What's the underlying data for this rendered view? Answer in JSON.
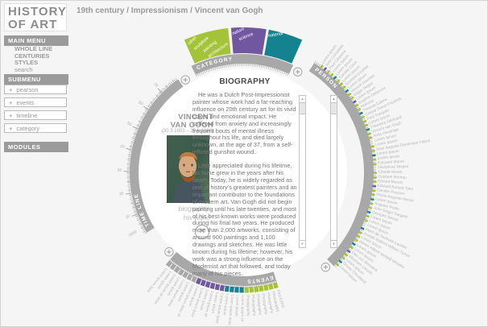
{
  "header": {
    "logo_line1": "HISTORY",
    "logo_line2": "OF ART",
    "breadcrumb": "19th century / Impressionism / Vincent van Gogh"
  },
  "sidebar": {
    "main_menu_label": "MAIN MENU",
    "main_menu_items": [
      "WHOLE LINE",
      "CENTURIES",
      "STYLES",
      "search"
    ],
    "submenu_label": "SUBMENU",
    "submenu_items": [
      "pearson",
      "events",
      "timeline",
      "category"
    ],
    "modules_label": "MODULES"
  },
  "colors": {
    "green": "#a5c339",
    "purple": "#7157a0",
    "teal": "#15838f",
    "gray": "#a8a8a8",
    "band": "#a8a8a8",
    "tick": "#b5b5b5",
    "label": "#b5b5b5"
  },
  "artist": {
    "name_line1": "VINCENT",
    "name_line2": "VAN GOGH",
    "dates": "(30.3.1853 – 29.8.1890)",
    "links": [
      "biography",
      "his work"
    ],
    "close_glyph": "✕"
  },
  "biography": {
    "title": "BIOGRAPHY",
    "paragraphs": [
      "He was a Dutch Post-Impressionist painter whose work had a far-reaching influence on 20th century art for its vivid colors and emotional impact. He suffered from anxiety and increasingly frequent bouts of mental illness throughout his life, and died largely unknown, at the age of 37, from a self-inflicted gunshot wound.",
      "Little appreciated during his lifetime, his fame grew in the years after his death. Today, he is widely regarded as one of history's greatest painters and an important contributor to the foundations of modern art. Van Gogh did not begin painting until his late twenties, and most of his best-known works were produced during his final two years. He produced more than 2,000 artworks, consisting of around 900 paintings and 1,100 drawings and sketches. He was little known during his lifetime; however, his work was a strong influence on the Modernist art that followed, and today many of his pieces."
    ]
  },
  "wheel": {
    "category": {
      "band_label": "CATEGORY",
      "segments": [
        {
          "color": "green",
          "items": [
            "other",
            "sculpture",
            "painting",
            "architecture"
          ]
        },
        {
          "color": "purple",
          "items": [
            "nature",
            "science"
          ]
        },
        {
          "color": "teal",
          "items": [
            "material"
          ]
        }
      ]
    },
    "person": {
      "band_label": "PERSON",
      "names": [
        {
          "n": "Lorem Ipsum",
          "tag": "green"
        },
        {
          "n": "John Constable",
          "tag": "purple"
        },
        {
          "n": "Paul Cézanne",
          "tag": "green"
        },
        {
          "n": "Lorem Ipsum",
          "tag": "green"
        },
        {
          "n": "Lorem Ipsum",
          "tag": "teal"
        },
        {
          "n": "Camille Corot",
          "tag": "green"
        },
        {
          "n": "Lorem Ipsum",
          "tag": "green"
        },
        {
          "n": "Gustave Courbet",
          "tag": "green"
        },
        {
          "n": "Lorem Ipsum",
          "tag": "teal"
        },
        {
          "n": "Honoré Daumier",
          "tag": "green"
        },
        {
          "n": "Edgar Degas",
          "tag": "green"
        },
        {
          "n": "Lorem Ipsum",
          "tag": "purple"
        },
        {
          "n": "Eugène Delacroix",
          "tag": "green"
        },
        {
          "n": "Hokusai",
          "tag": "green"
        },
        {
          "n": "Thomas Eakins",
          "tag": "teal"
        },
        {
          "n": "Caspar David Friedrich",
          "tag": "green"
        },
        {
          "n": "Paul Gauguin",
          "tag": "green"
        },
        {
          "n": "Lorem Ipsum",
          "tag": "green"
        },
        {
          "n": "Théodore Géricault",
          "tag": "teal"
        },
        {
          "n": "Vincent van Gogh",
          "tag": "green"
        },
        {
          "n": "Ando Hiroshige",
          "tag": "green"
        },
        {
          "n": "Lorem Ipsum",
          "tag": null
        },
        {
          "n": "Lorem Ipsum",
          "tag": "green"
        },
        {
          "n": "Jean Auguste Dominique Ingres",
          "tag": "green"
        },
        {
          "n": "Lorem Ipsum",
          "tag": "teal"
        },
        {
          "n": "Lorem Ipsum",
          "tag": "green"
        },
        {
          "n": "Edouard Manet",
          "tag": "green"
        },
        {
          "n": "Nicéphore Niépce",
          "tag": null
        },
        {
          "n": "Claude Monet",
          "tag": "green"
        },
        {
          "n": "Gustave Moreau",
          "tag": "green"
        },
        {
          "n": "Edvard Munch",
          "tag": "green"
        },
        {
          "n": "Edward Burnett Tylor",
          "tag": "purple"
        },
        {
          "n": "Camille Pissarro",
          "tag": "green"
        },
        {
          "n": "Pierre-Auguste Renoir",
          "tag": "green"
        },
        {
          "n": "Lorem Ipsum",
          "tag": "teal"
        },
        {
          "n": "Auguste Rodin",
          "tag": "green"
        },
        {
          "n": "John Singer Sargent",
          "tag": "green"
        },
        {
          "n": "Georges Seurat",
          "tag": "teal"
        },
        {
          "n": "Lorem Ipsum",
          "tag": "green"
        },
        {
          "n": "Lorem Ipsum",
          "tag": "green"
        },
        {
          "n": "Lorem Ipsum",
          "tag": null
        },
        {
          "n": "Henri de Toulouse-Lautrec",
          "tag": "teal"
        },
        {
          "n": "Joseph Mallord William Turner",
          "tag": "green"
        },
        {
          "n": "Lorem Ipsum",
          "tag": "green"
        },
        {
          "n": "James Abbott McNeill Whistler",
          "tag": "green"
        },
        {
          "n": "Lorem Ipsum",
          "tag": "teal"
        },
        {
          "n": "Lorem Ipsum",
          "tag": "green"
        },
        {
          "n": "Otto von Bismarck",
          "tag": "purple"
        },
        {
          "n": "Abraham Lincoln",
          "tag": "green"
        },
        {
          "n": "Lorem Ipsum",
          "tag": "green"
        },
        {
          "n": "Grover Cleveland",
          "tag": "teal"
        },
        {
          "n": "Lorem Ipsum",
          "tag": "green"
        }
      ]
    },
    "events": {
      "band_label": "EVENTS",
      "items": [
        {
          "label": "Lorem ipsum dolor",
          "color": "gray"
        },
        {
          "label": "Lorem ipsum",
          "color": "gray"
        },
        {
          "label": "Lorem ipsum sit amet",
          "color": "gray"
        },
        {
          "label": "Lorem ipsum",
          "color": "gray"
        },
        {
          "label": "Lorem ipsum dolor",
          "color": "gray"
        },
        {
          "label": "Lorem ipsum",
          "color": "gray"
        },
        {
          "label": "Lorem ipsum dolor sit",
          "color": "gray"
        },
        {
          "label": "Lorem ipsum",
          "color": "purple"
        },
        {
          "label": "Lorem ipsum dolor",
          "color": "purple"
        },
        {
          "label": "Lorem ipsum",
          "color": "purple"
        },
        {
          "label": "Lorem ipsum sit",
          "color": "purple"
        },
        {
          "label": "Lorem ipsum",
          "color": "purple"
        },
        {
          "label": "Lorem ipsum dolor",
          "color": "purple"
        },
        {
          "label": "Lorem ipsum",
          "color": "teal"
        },
        {
          "label": "Lorem ipsum dolor",
          "color": "teal"
        },
        {
          "label": "Lorem ipsum",
          "color": "teal"
        },
        {
          "label": "Lorem ipsum sit",
          "color": "teal"
        },
        {
          "label": "Photography",
          "color": "green"
        },
        {
          "label": "Photography",
          "color": "green"
        },
        {
          "label": "Photography",
          "color": "green"
        },
        {
          "label": "Photography",
          "color": "green"
        },
        {
          "label": "Photography",
          "color": "green"
        },
        {
          "label": "Photography",
          "color": "green"
        },
        {
          "label": "First EXPO",
          "color": "green"
        }
      ]
    },
    "timeline": {
      "band_label": "TIME LINE",
      "tick_labels": [
        "10",
        "20",
        "30",
        "40",
        "50",
        "60",
        "70"
      ],
      "start_year": "1850"
    }
  }
}
